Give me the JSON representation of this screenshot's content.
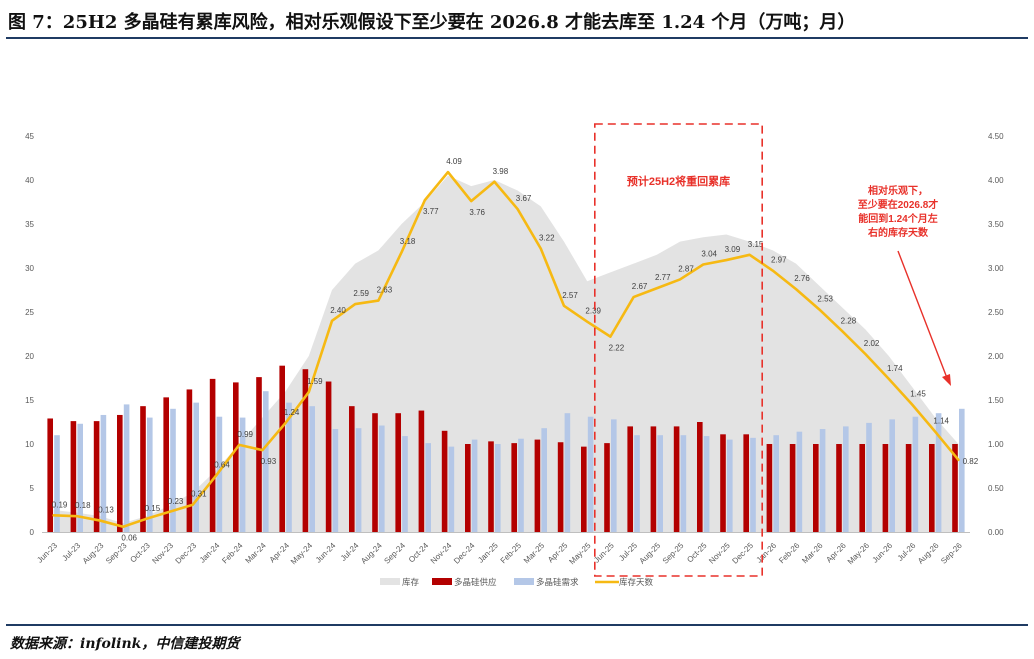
{
  "title": "图 7：25H2 多晶硅有累库风险，相对乐观假设下至少要在 2026.8 才能去库至 1.24 个月（万吨；月）",
  "source": "数据来源：infolink，中信建投期货",
  "colors": {
    "inventory": "#e3e3e3",
    "supply": "#b30000",
    "demand": "#b4c7e7",
    "days": "#f6b913",
    "annotation": "#e8312a",
    "rule": "#1f3b63"
  },
  "annotations": {
    "box_label": "预计25H2将重回累库",
    "note_lines": [
      "相对乐观下，",
      "至少要在2026.8才",
      "能回到1.24个月左",
      "右的库存天数"
    ]
  },
  "chart_data": {
    "type": "bar",
    "categories": [
      "Jun-23",
      "Jul-23",
      "Aug-23",
      "Sep-23",
      "Oct-23",
      "Nov-23",
      "Dec-23",
      "Jan-24",
      "Feb-24",
      "Mar-24",
      "Apr-24",
      "May-24",
      "Jun-24",
      "Jul-24",
      "Aug-24",
      "Sep-24",
      "Oct-24",
      "Nov-24",
      "Dec-24",
      "Jan-25",
      "Feb-25",
      "Mar-25",
      "Apr-25",
      "May-25",
      "Jun-25",
      "Jul-25",
      "Aug-25",
      "Sep-25",
      "Oct-25",
      "Nov-25",
      "Dec-25",
      "Jan-26",
      "Feb-26",
      "Mar-26",
      "Apr-26",
      "May-26",
      "Jun-26",
      "Jul-26",
      "Aug-26",
      "Sep-26"
    ],
    "series": [
      {
        "name": "库存",
        "type": "area",
        "axis": "left",
        "values": [
          2.5,
          2.2,
          1.8,
          1.0,
          1.8,
          3.0,
          4.5,
          7.0,
          10.0,
          13.0,
          16.0,
          20.0,
          27.5,
          30.5,
          32.0,
          35.0,
          37.5,
          40.5,
          39.3,
          40.0,
          38.8,
          37.0,
          33.0,
          28.5,
          29.5,
          30.5,
          31.5,
          33.0,
          33.5,
          33.8,
          33.0,
          32.0,
          30.5,
          28.0,
          25.5,
          23.0,
          20.0,
          16.5,
          13.0,
          10.0
        ]
      },
      {
        "name": "多晶硅供应",
        "type": "bar",
        "axis": "left",
        "values": [
          12.9,
          12.6,
          12.6,
          13.3,
          14.3,
          15.3,
          16.2,
          17.4,
          17.0,
          17.6,
          18.9,
          18.5,
          17.1,
          14.3,
          13.5,
          13.5,
          13.8,
          11.5,
          10.0,
          10.3,
          10.1,
          10.5,
          10.2,
          9.7,
          10.1,
          12.0,
          12.0,
          12.0,
          12.5,
          11.1,
          11.1,
          10.0,
          10.0,
          10.0,
          10.0,
          10.0,
          10.0,
          10.0,
          10.0,
          10.0
        ]
      },
      {
        "name": "多晶硅需求",
        "type": "bar",
        "axis": "left",
        "values": [
          11.0,
          12.3,
          13.3,
          14.5,
          13.0,
          14.0,
          14.7,
          13.1,
          13.0,
          16.0,
          14.7,
          14.3,
          11.7,
          11.8,
          12.1,
          10.9,
          10.1,
          9.7,
          10.5,
          10.0,
          10.6,
          11.8,
          13.5,
          13.1,
          12.8,
          11.0,
          11.0,
          11.0,
          10.9,
          10.5,
          10.7,
          11.0,
          11.4,
          11.7,
          12.0,
          12.4,
          12.8,
          13.1,
          13.5,
          14.0
        ]
      },
      {
        "name": "库存天数",
        "type": "line",
        "axis": "right",
        "values": [
          0.19,
          0.18,
          0.13,
          0.06,
          0.15,
          0.23,
          0.31,
          0.64,
          0.99,
          0.93,
          1.24,
          1.59,
          2.4,
          2.59,
          2.63,
          3.18,
          3.77,
          4.09,
          3.76,
          3.98,
          3.67,
          3.22,
          2.57,
          2.39,
          2.22,
          2.67,
          2.77,
          2.87,
          3.04,
          3.09,
          3.15,
          2.97,
          2.76,
          2.53,
          2.28,
          2.02,
          1.74,
          1.45,
          1.14,
          0.82
        ]
      }
    ],
    "line_labels": [
      "0.19",
      "0.18",
      "0.13",
      "0.06",
      "0.15",
      "0.23",
      "0.31",
      "0.64",
      "0.99",
      "0.93",
      "1.24",
      "1.59",
      "2.40",
      "2.59",
      "2.63",
      "3.18",
      "3.77",
      "4.09",
      "3.76",
      "3.98",
      "3.67",
      "3.22",
      "2.57",
      "2.39",
      "2.22",
      "2.67",
      "2.77",
      "2.87",
      "3.04",
      "3.09",
      "3.15",
      "2.97",
      "2.76",
      "2.53",
      "2.28",
      "2.02",
      "1.74",
      "1.45",
      "1.14",
      "0.82"
    ],
    "left_axis": {
      "ylim": [
        0,
        45
      ],
      "ticks": [
        "0",
        "5",
        "10",
        "15",
        "20",
        "25",
        "30",
        "35",
        "40",
        "45"
      ]
    },
    "right_axis": {
      "ylim": [
        0,
        4.5
      ],
      "ticks": [
        "0.00",
        "0.50",
        "1.00",
        "1.50",
        "2.00",
        "2.50",
        "3.00",
        "3.50",
        "4.00",
        "4.50"
      ]
    },
    "legend": [
      "库存",
      "多晶硅供应",
      "多晶硅需求",
      "库存天数"
    ],
    "legend_position": "bottom",
    "highlight_range": [
      "Jun-25",
      "Dec-25"
    ]
  }
}
